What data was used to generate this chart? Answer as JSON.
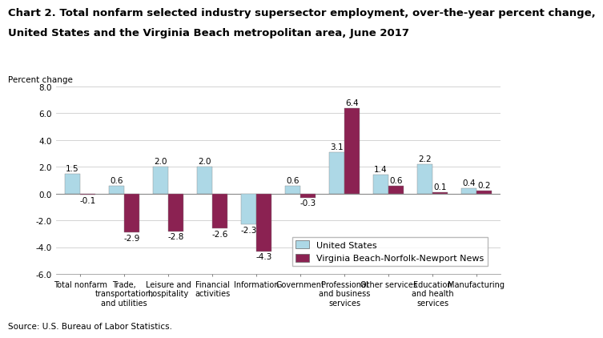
{
  "title_line1": "Chart 2. Total nonfarm selected industry supersector employment, over-the-year percent change,",
  "title_line2": "United States and the Virginia Beach metropolitan area, June 2017",
  "ylabel": "Percent change",
  "source": "Source: U.S. Bureau of Labor Statistics.",
  "categories": [
    "Total nonfarm",
    "Trade,\ntransportation,\nand utilities",
    "Leisure and\nhospitality",
    "Financial\nactivities",
    "Information",
    "Government",
    "Professional\nand business\nservices",
    "Other services",
    "Education\nand health\nservices",
    "Manufacturing"
  ],
  "us_values": [
    1.5,
    0.6,
    2.0,
    2.0,
    -2.3,
    0.6,
    3.1,
    1.4,
    2.2,
    0.4
  ],
  "vb_values": [
    -0.1,
    -2.9,
    -2.8,
    -2.6,
    -4.3,
    -0.3,
    6.4,
    0.6,
    0.1,
    0.2
  ],
  "us_color": "#ADD8E6",
  "vb_color": "#8B2252",
  "ylim": [
    -6.0,
    8.0
  ],
  "yticks": [
    -6.0,
    -4.0,
    -2.0,
    0.0,
    2.0,
    4.0,
    6.0,
    8.0
  ],
  "legend_us": "United States",
  "legend_vb": "Virginia Beach-Norfolk-Newport News",
  "bar_width": 0.35,
  "title_fontsize": 9.5,
  "axis_fontsize": 7.5,
  "tick_fontsize": 7.5,
  "label_fontsize": 7.5,
  "legend_fontsize": 8
}
